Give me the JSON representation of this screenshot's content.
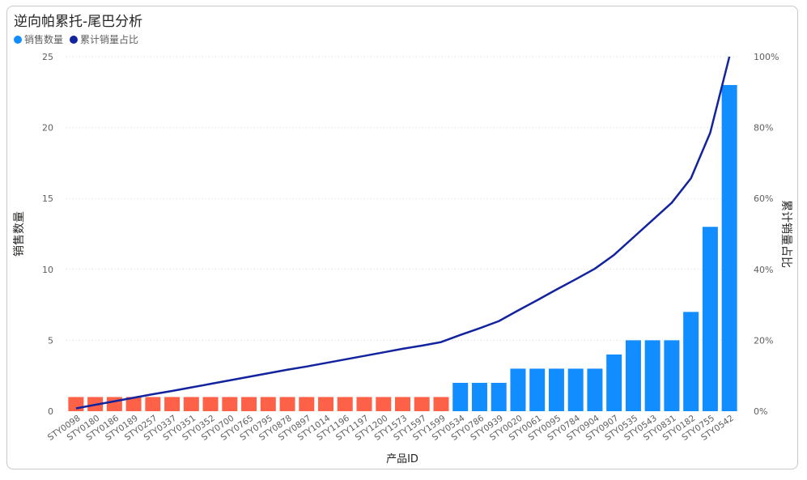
{
  "title": "逆向帕累托-尾巴分析",
  "legend": [
    {
      "name": "销售数量",
      "color": "#118dff"
    },
    {
      "name": "累计销量占比",
      "color": "#12239e"
    }
  ],
  "colors": {
    "tail": "#fd6249",
    "main": "#118dff",
    "line": "#12239e"
  },
  "chart_data": {
    "type": "bar",
    "xlabel": "产品ID",
    "ylabel": "销售数量",
    "y2label": "累计销量占比",
    "ylim": [
      0,
      25
    ],
    "y2lim": [
      0,
      1
    ],
    "yticks": [
      "0",
      "5",
      "10",
      "15",
      "20",
      "25"
    ],
    "y2ticks": [
      "0%",
      "20%",
      "40%",
      "60%",
      "80%",
      "100%"
    ],
    "categories": [
      "STY0098",
      "STY0180",
      "STY0186",
      "STY0189",
      "STY0257",
      "STY0337",
      "STY0351",
      "STY0352",
      "STY0700",
      "STY0765",
      "STY0795",
      "STY0878",
      "STY0897",
      "STY1014",
      "STY1196",
      "STY1197",
      "STY1200",
      "STY1573",
      "STY1597",
      "STY1599",
      "STY0534",
      "STY0786",
      "STY0939",
      "STY0020",
      "STY0061",
      "STY0095",
      "STY0784",
      "STY0904",
      "STY0907",
      "STY0535",
      "STY0543",
      "STY0831",
      "STY0182",
      "STY0755",
      "STY0542"
    ],
    "series": [
      {
        "name": "销售数量",
        "values": [
          1,
          1,
          1,
          1,
          1,
          1,
          1,
          1,
          1,
          1,
          1,
          1,
          1,
          1,
          1,
          1,
          1,
          1,
          1,
          1,
          2,
          2,
          2,
          3,
          3,
          3,
          3,
          3,
          4,
          5,
          5,
          5,
          7,
          13,
          23
        ]
      },
      {
        "name": "累计销量占比",
        "values": [
          0.008,
          0.018,
          0.028,
          0.038,
          0.048,
          0.057,
          0.067,
          0.077,
          0.087,
          0.097,
          0.107,
          0.117,
          0.126,
          0.136,
          0.146,
          0.156,
          0.166,
          0.176,
          0.185,
          0.195,
          0.215,
          0.234,
          0.254,
          0.284,
          0.313,
          0.343,
          0.372,
          0.402,
          0.441,
          0.49,
          0.539,
          0.588,
          0.657,
          0.785,
          1.0
        ]
      }
    ],
    "tail_count": 20,
    "grid": true,
    "legend_position": "top-left"
  }
}
